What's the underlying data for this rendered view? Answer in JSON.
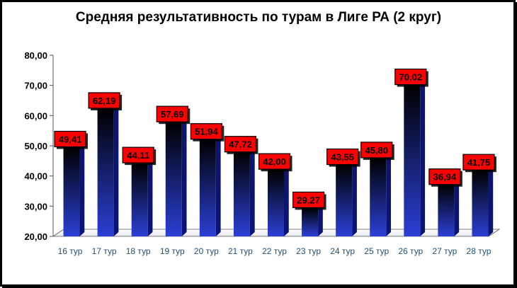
{
  "chart_data": {
    "type": "bar",
    "title": "Средняя результативность по турам в Лиге РА (2 круг)",
    "xlabel": "",
    "ylabel": "",
    "categories": [
      "16 тур",
      "17 тур",
      "18 тур",
      "19 тур",
      "20 тур",
      "21 тур",
      "22 тур",
      "23 тур",
      "24 тур",
      "25 тур",
      "26 тур",
      "27 тур",
      "28 тур"
    ],
    "values": [
      49.41,
      62.19,
      44.11,
      57.69,
      51.94,
      47.72,
      42.0,
      29.27,
      43.55,
      45.8,
      70.02,
      36.94,
      41.75
    ],
    "value_labels": [
      "49,41",
      "62,19",
      "44,11",
      "57,69",
      "51,94",
      "47,72",
      "42,00",
      "29,27",
      "43,55",
      "45,80",
      "70,02",
      "36,94",
      "41,75"
    ],
    "ylim": [
      20,
      80
    ],
    "yticks": [
      "20,00",
      "30,00",
      "40,00",
      "50,00",
      "60,00",
      "70,00",
      "80,00"
    ],
    "grid": false,
    "legend": "none",
    "colors": {
      "bar_top": "#000000",
      "bar_bottom": "#2b3fd6",
      "label_fill": "#ff0000",
      "label_border": "#000000",
      "xtick_color": "#1f4e79"
    }
  }
}
